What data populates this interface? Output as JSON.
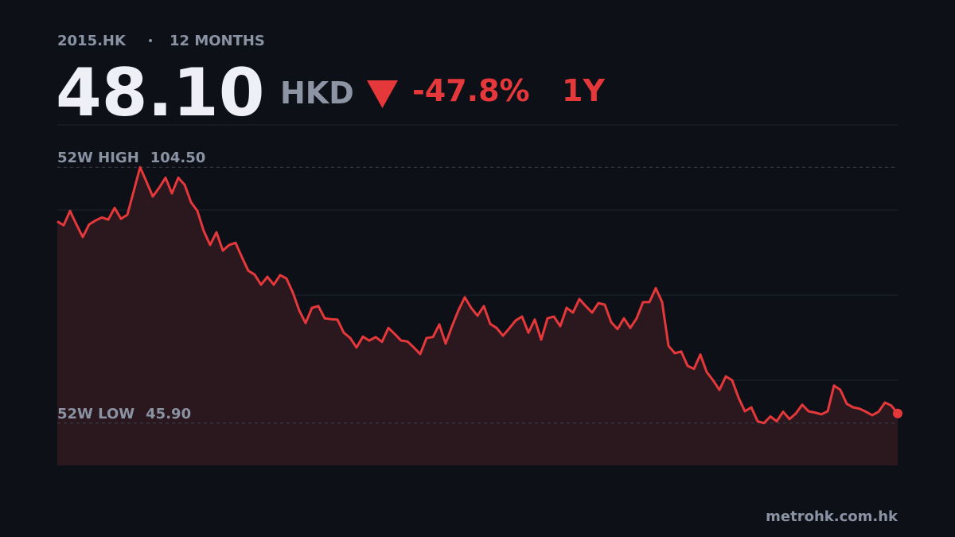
{
  "header": {
    "ticker": "2015.HK",
    "range": "12 MONTHS",
    "price": "48.10",
    "currency": "HKD",
    "change": "-47.8%",
    "period": "1Y"
  },
  "chart_data": {
    "type": "area",
    "color": "#e5383b",
    "ylim": [
      36.2,
      114.2
    ],
    "reference_lines": [
      {
        "name": "52W HIGH",
        "value": 104.5,
        "value_label": "104.50"
      },
      {
        "name": "52W LOW",
        "value": 45.9,
        "value_label": "45.90"
      }
    ],
    "values": [
      92.1,
      91.2,
      94.5,
      91.4,
      88.5,
      91.4,
      92.3,
      93.0,
      92.5,
      95.2,
      92.7,
      93.6,
      99.0,
      104.5,
      101.2,
      97.8,
      99.8,
      102.1,
      98.5,
      102.1,
      100.5,
      96.5,
      94.5,
      89.9,
      86.7,
      89.6,
      85.4,
      86.7,
      87.2,
      83.9,
      80.8,
      79.9,
      77.6,
      79.4,
      77.6,
      79.8,
      79.0,
      75.8,
      71.7,
      68.8,
      72.3,
      72.7,
      69.9,
      69.7,
      69.6,
      66.6,
      65.4,
      63.2,
      65.7,
      64.8,
      65.6,
      64.5,
      67.7,
      66.3,
      64.8,
      64.6,
      63.2,
      61.7,
      65.4,
      65.6,
      68.5,
      64.1,
      68.1,
      71.7,
      74.7,
      72.3,
      70.5,
      72.7,
      68.6,
      67.7,
      65.9,
      67.6,
      69.4,
      70.3,
      66.6,
      69.6,
      65.0,
      69.9,
      70.3,
      68.1,
      72.3,
      71.2,
      74.3,
      72.7,
      71.2,
      73.4,
      73.0,
      69.0,
      67.4,
      69.9,
      67.7,
      69.9,
      73.6,
      73.6,
      76.8,
      73.6,
      63.6,
      61.9,
      62.3,
      59.0,
      58.3,
      61.6,
      57.6,
      55.7,
      53.5,
      56.6,
      55.7,
      51.7,
      48.6,
      49.5,
      46.3,
      45.9,
      47.4,
      46.3,
      48.5,
      46.8,
      48.1,
      50.1,
      48.6,
      48.3,
      47.9,
      48.6,
      54.5,
      53.5,
      50.3,
      49.5,
      49.2,
      48.5,
      47.7,
      48.5,
      50.6,
      49.9,
      48.1
    ]
  },
  "footer": {
    "source": "metrohk.com.hk"
  }
}
